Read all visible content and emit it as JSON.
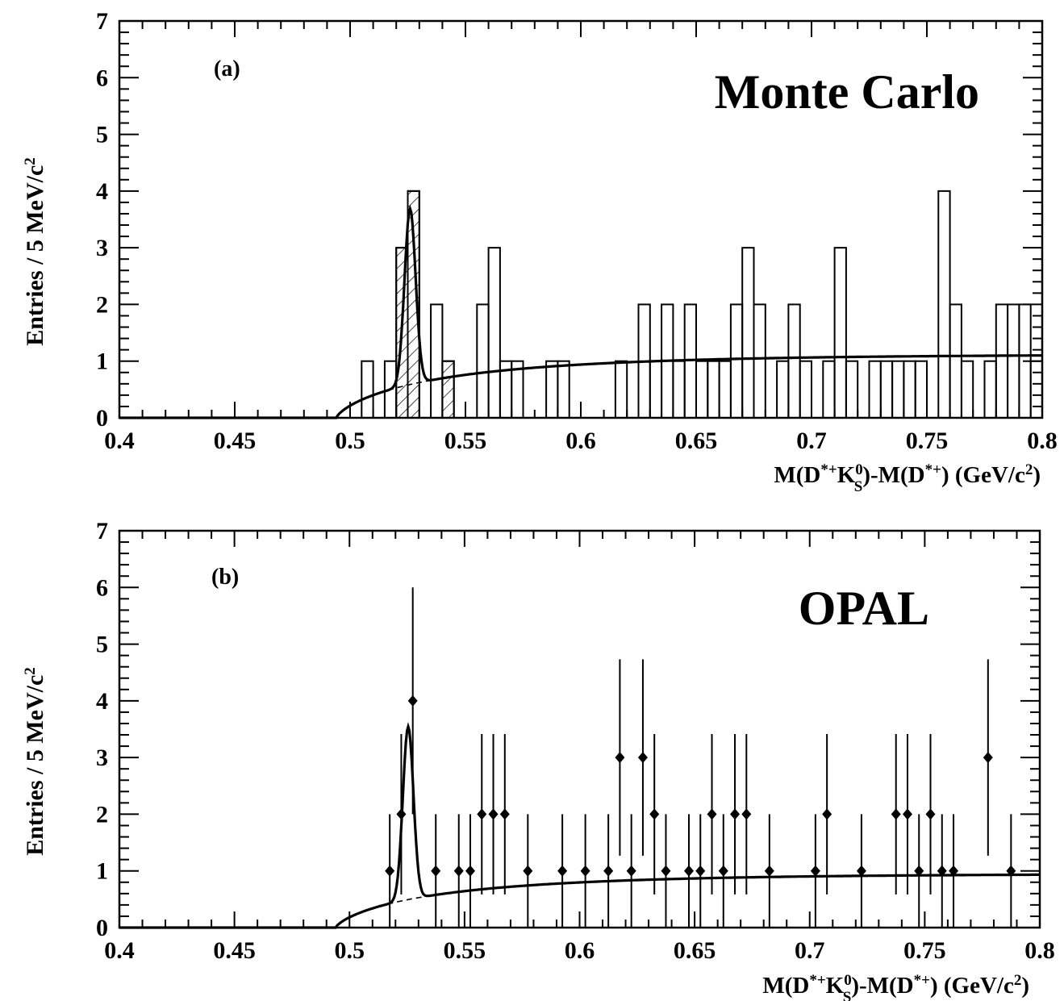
{
  "chart_data": [
    {
      "type": "histogram",
      "panel_label": "(a)",
      "title": "Monte Carlo",
      "xlabel": "M(D*+K0S)-M(D*+)  (GeV/c2)",
      "ylabel": "Entries / 5 MeV/c2",
      "xlim": [
        0.4,
        0.8
      ],
      "ylim": [
        0,
        7
      ],
      "x_ticks": [
        "0.4",
        "0.45",
        "0.5",
        "0.55",
        "0.6",
        "0.65",
        "0.7",
        "0.75",
        "0.8"
      ],
      "y_ticks": [
        "0",
        "1",
        "2",
        "3",
        "4",
        "5",
        "6",
        "7"
      ],
      "bin_width": 0.005,
      "bins": [
        [
          0.505,
          1
        ],
        [
          0.515,
          1
        ],
        [
          0.52,
          3
        ],
        [
          0.525,
          4
        ],
        [
          0.535,
          2
        ],
        [
          0.54,
          1
        ],
        [
          0.555,
          2
        ],
        [
          0.56,
          3
        ],
        [
          0.565,
          1
        ],
        [
          0.57,
          1
        ],
        [
          0.585,
          1
        ],
        [
          0.59,
          1
        ],
        [
          0.615,
          1
        ],
        [
          0.625,
          2
        ],
        [
          0.63,
          1
        ],
        [
          0.635,
          2
        ],
        [
          0.64,
          1
        ],
        [
          0.645,
          2
        ],
        [
          0.65,
          1
        ],
        [
          0.655,
          1
        ],
        [
          0.66,
          1
        ],
        [
          0.665,
          2
        ],
        [
          0.67,
          3
        ],
        [
          0.675,
          2
        ],
        [
          0.685,
          1
        ],
        [
          0.69,
          2
        ],
        [
          0.695,
          1
        ],
        [
          0.705,
          1
        ],
        [
          0.71,
          3
        ],
        [
          0.715,
          1
        ],
        [
          0.725,
          1
        ],
        [
          0.73,
          1
        ],
        [
          0.735,
          1
        ],
        [
          0.74,
          1
        ],
        [
          0.745,
          1
        ],
        [
          0.755,
          4
        ],
        [
          0.76,
          2
        ],
        [
          0.765,
          1
        ],
        [
          0.775,
          1
        ],
        [
          0.78,
          2
        ],
        [
          0.785,
          2
        ],
        [
          0.79,
          2
        ],
        [
          0.795,
          1
        ]
      ],
      "signal_bins": [
        [
          0.52,
          3
        ],
        [
          0.525,
          4
        ],
        [
          0.54,
          1
        ]
      ],
      "fit": {
        "threshold": 0.494,
        "background_plateau": 1.12,
        "peak_mean": 0.526,
        "peak_sigma": 0.0024,
        "peak_height": 3.1
      }
    },
    {
      "type": "scatter",
      "panel_label": "(b)",
      "title": "OPAL",
      "xlabel": "M(D*+K0S)-M(D*+)  (GeV/c2)",
      "ylabel": "Entries / 5 MeV/c2",
      "xlim": [
        0.4,
        0.8
      ],
      "ylim": [
        0,
        7
      ],
      "x_ticks": [
        "0.4",
        "0.45",
        "0.5",
        "0.55",
        "0.6",
        "0.65",
        "0.7",
        "0.75",
        "0.8"
      ],
      "y_ticks": [
        "0",
        "1",
        "2",
        "3",
        "4",
        "5",
        "6",
        "7"
      ],
      "points": [
        [
          0.5175,
          1
        ],
        [
          0.5225,
          2
        ],
        [
          0.5275,
          4
        ],
        [
          0.5375,
          1
        ],
        [
          0.5475,
          1
        ],
        [
          0.5525,
          1
        ],
        [
          0.5575,
          2
        ],
        [
          0.5625,
          2
        ],
        [
          0.5675,
          2
        ],
        [
          0.5775,
          1
        ],
        [
          0.5925,
          1
        ],
        [
          0.6025,
          1
        ],
        [
          0.6125,
          1
        ],
        [
          0.6175,
          3
        ],
        [
          0.6225,
          1
        ],
        [
          0.6275,
          3
        ],
        [
          0.6325,
          2
        ],
        [
          0.6375,
          1
        ],
        [
          0.6475,
          1
        ],
        [
          0.6525,
          1
        ],
        [
          0.6575,
          2
        ],
        [
          0.6625,
          1
        ],
        [
          0.6675,
          2
        ],
        [
          0.6725,
          2
        ],
        [
          0.6825,
          1
        ],
        [
          0.7025,
          1
        ],
        [
          0.7075,
          2
        ],
        [
          0.7225,
          1
        ],
        [
          0.7375,
          2
        ],
        [
          0.7425,
          2
        ],
        [
          0.7475,
          1
        ],
        [
          0.7525,
          2
        ],
        [
          0.7575,
          1
        ],
        [
          0.7625,
          1
        ],
        [
          0.7775,
          3
        ],
        [
          0.7875,
          1
        ]
      ],
      "fit": {
        "threshold": 0.494,
        "background_plateau": 0.95,
        "peak_mean": 0.5255,
        "peak_sigma": 0.0023,
        "peak_height": 3.05
      }
    }
  ]
}
